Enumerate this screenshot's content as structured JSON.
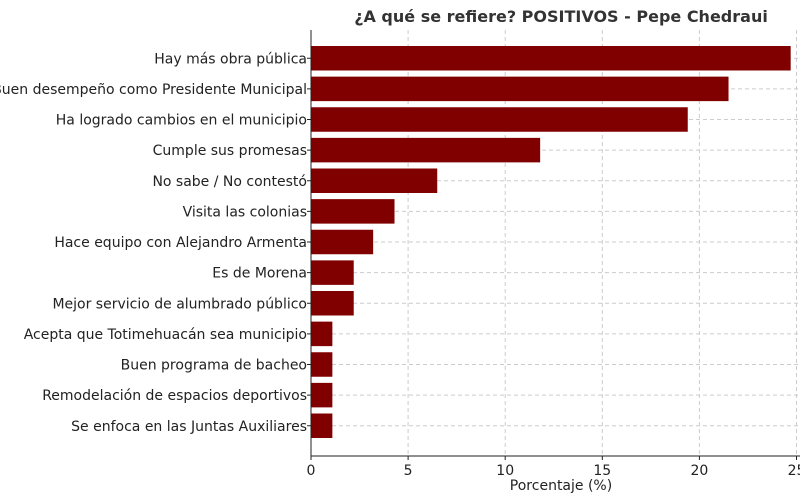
{
  "chart_data": {
    "type": "bar",
    "orientation": "horizontal",
    "title": "¿A qué se refiere? POSITIVOS - Pepe Chedraui",
    "xlabel": "Porcentaje (%)",
    "ylabel": "",
    "xlim": [
      0,
      25
    ],
    "xticks": [
      "0",
      "5",
      "10",
      "15",
      "20",
      "25"
    ],
    "grid": true,
    "bar_color": "#800000",
    "categories": [
      "Hay más obra pública",
      "Buen desempeño como Presidente Municipal",
      "Ha logrado cambios en el municipio",
      "Cumple sus promesas",
      "No sabe / No contestó",
      "Visita las colonias",
      "Hace equipo con Alejandro Armenta",
      "Es de Morena",
      "Mejor servicio de alumbrado público",
      "Acepta que Totimehuacán sea municipio",
      "Buen programa de bacheo",
      "Remodelación de espacios deportivos",
      "Se enfoca en las Juntas Auxiliares"
    ],
    "values": [
      24.7,
      21.5,
      19.4,
      11.8,
      6.5,
      4.3,
      3.2,
      2.2,
      2.2,
      1.1,
      1.1,
      1.1,
      1.1
    ]
  }
}
